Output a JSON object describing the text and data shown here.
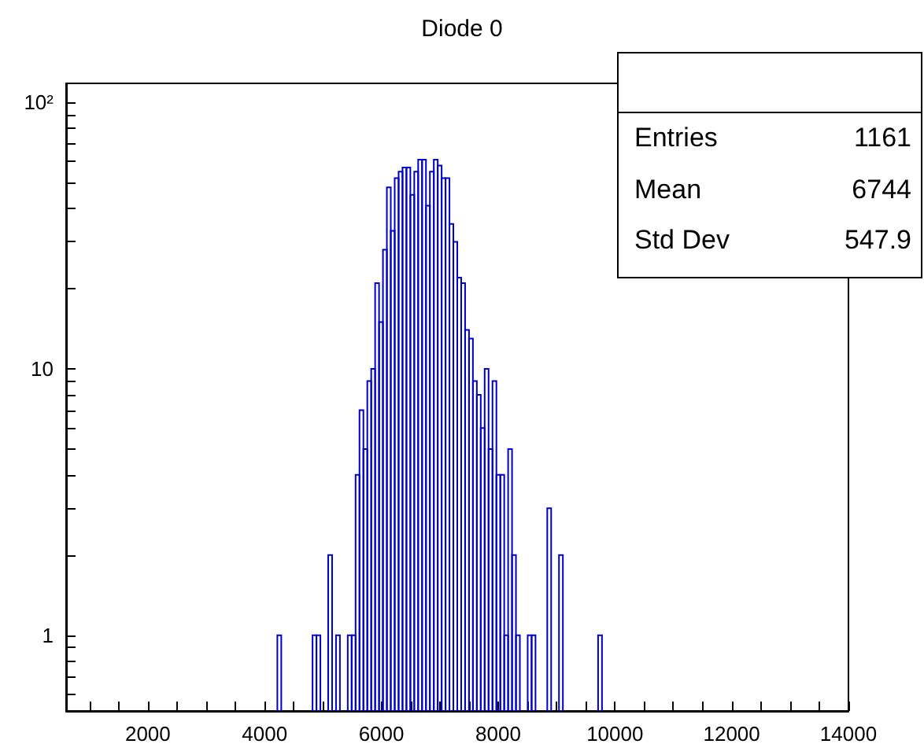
{
  "chart_data": {
    "type": "histogram",
    "title": "Diode 0",
    "bins": [
      4218,
      4285,
      4352,
      4419,
      4486,
      4553,
      4620,
      4687,
      4754,
      4821,
      4888,
      4955,
      5022,
      5089,
      5156,
      5223,
      5290,
      5357,
      5424,
      5491,
      5558,
      5625,
      5692,
      5759,
      5826,
      5893,
      5960,
      6027,
      6094,
      6161,
      6228,
      6295,
      6362,
      6429,
      6496,
      6563,
      6630,
      6697,
      6764,
      6831,
      6898,
      6965,
      7032,
      7099,
      7166,
      7233,
      7300,
      7367,
      7434,
      7501,
      7568,
      7635,
      7702,
      7769,
      7836,
      7903,
      7970,
      8037,
      8104,
      8171,
      8238,
      8305,
      8372,
      8439,
      8506,
      8573,
      8640,
      8707,
      8774,
      8841,
      8908,
      8975,
      9042,
      9109,
      9176,
      9243,
      9310,
      9377,
      9444,
      9511,
      9578,
      9645,
      9712,
      9779
    ],
    "values": [
      1,
      null,
      null,
      null,
      null,
      null,
      null,
      null,
      null,
      1,
      1,
      null,
      null,
      2,
      null,
      1,
      null,
      null,
      1,
      1,
      4,
      7,
      5,
      9,
      10,
      21,
      15,
      28,
      48,
      33,
      52,
      55,
      57,
      57,
      45,
      55,
      61,
      61,
      41,
      55,
      61,
      58,
      52,
      52,
      35,
      30,
      22,
      21,
      14,
      13,
      9,
      8,
      6,
      10,
      5,
      9,
      4,
      4,
      1,
      5,
      2,
      1,
      null,
      null,
      1,
      1,
      null,
      null,
      null,
      3,
      null,
      null,
      2,
      null,
      null,
      null,
      null,
      null,
      null,
      null,
      null,
      null,
      1
    ],
    "color": "#0000cc",
    "log": "y",
    "xlim": [
      600,
      14000
    ],
    "ylim": [
      0.52,
      118
    ],
    "xticks": [
      {
        "value": 1000,
        "label": null
      },
      {
        "value": 1500,
        "label": null
      },
      2000,
      {
        "value": 2500,
        "label": null
      },
      {
        "value": 3000,
        "label": null
      },
      {
        "value": 3500,
        "label": null
      },
      4000,
      {
        "value": 4500,
        "label": null
      },
      {
        "value": 5000,
        "label": null
      },
      {
        "value": 5500,
        "label": null
      },
      6000,
      {
        "value": 6500,
        "label": null
      },
      {
        "value": 7000,
        "label": null
      },
      {
        "value": 7500,
        "label": null
      },
      8000,
      {
        "value": 8500,
        "label": null
      },
      {
        "value": 9000,
        "label": null
      },
      {
        "value": 9500,
        "label": null
      },
      10000,
      {
        "value": 10500,
        "label": null
      },
      {
        "value": 11000,
        "label": null
      },
      {
        "value": 11500,
        "label": null
      },
      12000,
      {
        "value": 12500,
        "label": null
      },
      {
        "value": 13000,
        "label": null
      },
      {
        "value": 13500,
        "label": null
      },
      14000
    ],
    "yticks": [
      {
        "value": 0.6,
        "label": null
      },
      {
        "value": 0.7,
        "label": null
      },
      {
        "value": 0.8,
        "label": null
      },
      {
        "value": 0.9,
        "label": null
      },
      1,
      {
        "value": 2,
        "label": null
      },
      {
        "value": 3,
        "label": null
      },
      {
        "value": 4,
        "label": null
      },
      {
        "value": 5,
        "label": null
      },
      {
        "value": 6,
        "label": null
      },
      {
        "value": 7,
        "label": null
      },
      {
        "value": 8,
        "label": null
      },
      {
        "value": 9,
        "label": null
      },
      10,
      {
        "value": 20,
        "label": null
      },
      {
        "value": 30,
        "label": null
      },
      {
        "value": 40,
        "label": null
      },
      {
        "value": 50,
        "label": null
      },
      {
        "value": 60,
        "label": null
      },
      {
        "value": 70,
        "label": null
      },
      {
        "value": 80,
        "label": null
      },
      {
        "value": 90,
        "label": null
      },
      {
        "value": 100,
        "label": "10²"
      }
    ],
    "annotations": [
      "Entries",
      "1161",
      "Mean",
      "6744",
      "Std Dev",
      "547.9"
    ]
  }
}
